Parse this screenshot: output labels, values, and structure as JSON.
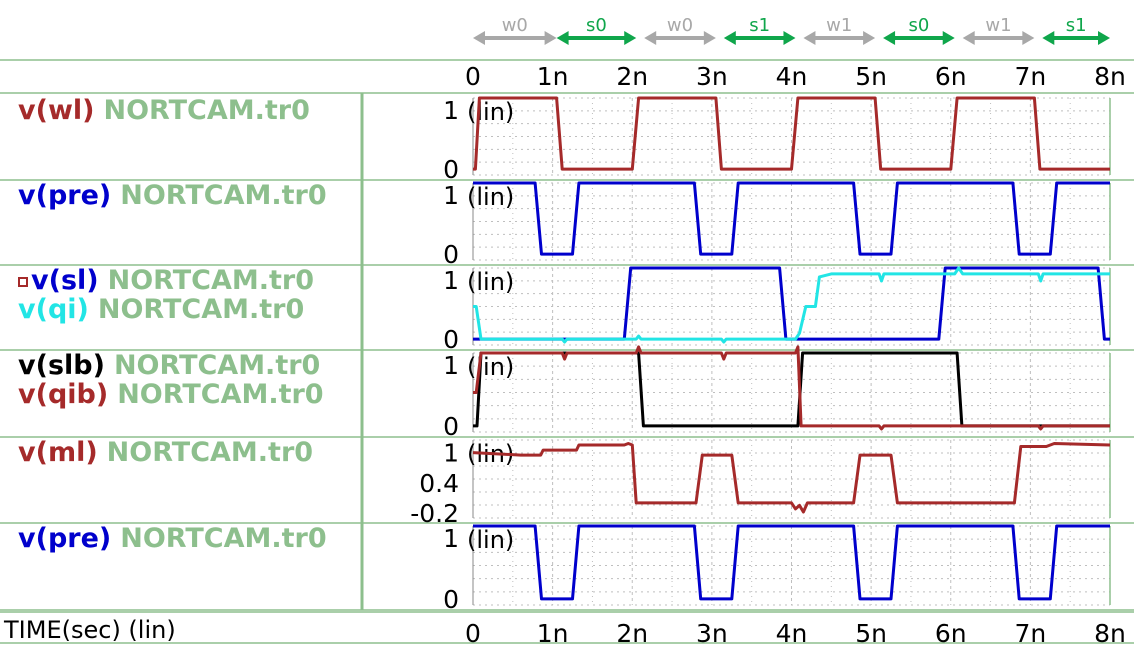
{
  "time_axis": {
    "label": "TIME(sec) (lin)",
    "ticks": [
      "0",
      "1n",
      "2n",
      "3n",
      "4n",
      "5n",
      "6n",
      "7n",
      "8n"
    ],
    "range_ns": [
      0,
      8
    ]
  },
  "ops_row": [
    {
      "label": "w0",
      "t0": 0.0,
      "t1": 1.05,
      "color": "#a8a8a8"
    },
    {
      "label": "s0",
      "t0": 1.05,
      "t1": 2.05,
      "color": "#0fa64b"
    },
    {
      "label": "w0",
      "t0": 2.15,
      "t1": 3.05,
      "color": "#a8a8a8"
    },
    {
      "label": "s1",
      "t0": 3.15,
      "t1": 4.05,
      "color": "#0fa64b"
    },
    {
      "label": "w1",
      "t0": 4.15,
      "t1": 5.05,
      "color": "#a8a8a8"
    },
    {
      "label": "s0",
      "t0": 5.15,
      "t1": 6.05,
      "color": "#0fa64b"
    },
    {
      "label": "w1",
      "t0": 6.15,
      "t1": 7.05,
      "color": "#a8a8a8"
    },
    {
      "label": "s1",
      "t0": 7.15,
      "t1": 8.0,
      "color": "#0fa64b"
    }
  ],
  "chart_data": [
    {
      "type": "line",
      "scale_label": "(lin)",
      "yticks": [
        {
          "v": 1,
          "label": "1"
        },
        {
          "v": 0,
          "label": "0"
        }
      ],
      "ylim": [
        -0.1,
        1.2
      ],
      "series": [
        {
          "name": "v(wl)",
          "source": "NORTCAM.tr0",
          "color": "#a52a2a",
          "x": [
            0,
            0.03,
            0.08,
            1.05,
            1.12,
            2.0,
            2.08,
            3.05,
            3.12,
            4.0,
            4.08,
            5.05,
            5.12,
            6.0,
            6.08,
            7.05,
            7.12,
            8.0
          ],
          "y": [
            0,
            0,
            1.2,
            1.2,
            0,
            0,
            1.2,
            1.2,
            0,
            0,
            1.2,
            1.2,
            0,
            0,
            1.2,
            1.2,
            0,
            0
          ]
        }
      ]
    },
    {
      "type": "line",
      "scale_label": "(lin)",
      "yticks": [
        {
          "v": 1,
          "label": "1"
        },
        {
          "v": 0,
          "label": "0"
        }
      ],
      "ylim": [
        -0.1,
        1.2
      ],
      "series": [
        {
          "name": "v(pre)",
          "source": "NORTCAM.tr0",
          "color": "#0000cc",
          "x": [
            0,
            0.78,
            0.86,
            1.25,
            1.33,
            2.78,
            2.86,
            3.25,
            3.33,
            4.78,
            4.86,
            5.25,
            5.33,
            6.78,
            6.86,
            7.25,
            7.33,
            8.0
          ],
          "y": [
            1.2,
            1.2,
            0,
            0,
            1.2,
            1.2,
            0,
            0,
            1.2,
            1.2,
            0,
            0,
            1.2,
            1.2,
            0,
            0,
            1.2,
            1.2
          ]
        }
      ]
    },
    {
      "type": "line",
      "scale_label": "(lin)",
      "marker_glyph": "▫",
      "yticks": [
        {
          "v": 1,
          "label": "1"
        },
        {
          "v": 0,
          "label": "0"
        }
      ],
      "ylim": [
        -0.1,
        1.2
      ],
      "series": [
        {
          "name": "v(sl)",
          "source": "NORTCAM.tr0",
          "color": "#0000cc",
          "x": [
            0,
            1.9,
            1.98,
            3.85,
            3.93,
            5.85,
            5.93,
            7.85,
            7.93,
            8.0
          ],
          "y": [
            0,
            0,
            1.2,
            1.2,
            0,
            0,
            1.2,
            1.2,
            0,
            0
          ]
        },
        {
          "name": "v(qi)",
          "source": "NORTCAM.tr0",
          "color": "#22e5e5",
          "x": [
            0,
            0.04,
            0.1,
            1.12,
            1.15,
            1.18,
            2.05,
            2.08,
            2.11,
            3.12,
            3.15,
            3.18,
            4.05,
            4.1,
            4.18,
            4.3,
            4.35,
            4.5,
            5.1,
            5.13,
            5.16,
            6.05,
            6.1,
            6.15,
            7.1,
            7.13,
            7.16,
            8.0
          ],
          "y": [
            0.55,
            0.55,
            0,
            0,
            -0.05,
            0,
            0,
            0.05,
            0,
            0,
            -0.05,
            0,
            0,
            0.1,
            0.55,
            0.55,
            1.05,
            1.1,
            1.1,
            0.98,
            1.1,
            1.1,
            1.2,
            1.1,
            1.1,
            0.98,
            1.1,
            1.1
          ]
        }
      ]
    },
    {
      "type": "line",
      "scale_label": "(lin)",
      "yticks": [
        {
          "v": 1,
          "label": "1"
        },
        {
          "v": 0,
          "label": "0"
        }
      ],
      "ylim": [
        -0.1,
        1.2
      ],
      "series": [
        {
          "name": "v(slb)",
          "source": "NORTCAM.tr0",
          "color": "#000000",
          "x": [
            0,
            0.05,
            0.1,
            2.08,
            2.14,
            4.08,
            4.14,
            6.08,
            6.14,
            8.0
          ],
          "y": [
            0,
            0,
            1.2,
            1.2,
            0,
            0,
            1.2,
            1.2,
            0,
            0
          ]
        },
        {
          "name": "v(qib)",
          "source": "NORTCAM.tr0",
          "color": "#a52a2a",
          "x": [
            0,
            0.04,
            0.1,
            1.12,
            1.15,
            1.18,
            2.05,
            2.08,
            2.11,
            3.12,
            3.15,
            3.18,
            4.05,
            4.08,
            4.12,
            5.1,
            5.13,
            5.16,
            7.1,
            7.13,
            7.16,
            8.0
          ],
          "y": [
            0.55,
            0.55,
            1.2,
            1.2,
            1.1,
            1.2,
            1.2,
            1.3,
            1.2,
            1.2,
            1.1,
            1.2,
            1.2,
            1.3,
            0,
            0,
            -0.05,
            0,
            0,
            -0.05,
            0,
            0
          ]
        }
      ]
    },
    {
      "type": "line",
      "scale_label": "(lin)",
      "yticks": [
        {
          "v": 1,
          "label": "1"
        },
        {
          "v": 0.4,
          "label": "0.4"
        },
        {
          "v": -0.2,
          "label": "-0.2"
        }
      ],
      "ylim": [
        -0.3,
        1.25
      ],
      "series": [
        {
          "name": "v(ml)",
          "source": "NORTCAM.tr0",
          "color": "#a52a2a",
          "x": [
            0,
            0.6,
            0.85,
            0.88,
            1.3,
            1.33,
            1.9,
            1.95,
            2.0,
            2.05,
            2.8,
            2.88,
            3.25,
            3.33,
            4.0,
            4.05,
            4.1,
            4.15,
            4.2,
            4.78,
            4.86,
            5.25,
            5.33,
            6.1,
            6.8,
            6.88,
            7.2,
            7.3,
            8.0
          ],
          "y": [
            1.0,
            0.95,
            0.95,
            1.05,
            1.05,
            1.15,
            1.15,
            1.18,
            1.15,
            0,
            0,
            0.95,
            0.95,
            0,
            0,
            -0.12,
            -0.05,
            -0.18,
            0,
            0,
            0.95,
            0.95,
            0,
            0,
            0,
            1.12,
            1.12,
            1.18,
            1.15
          ]
        }
      ]
    },
    {
      "type": "line",
      "scale_label": "(lin)",
      "yticks": [
        {
          "v": 1,
          "label": "1"
        },
        {
          "v": 0,
          "label": "0"
        }
      ],
      "ylim": [
        -0.1,
        1.2
      ],
      "series": [
        {
          "name": "v(pre)",
          "source": "NORTCAM.tr0",
          "color": "#0000cc",
          "x": [
            0,
            0.78,
            0.86,
            1.25,
            1.33,
            2.78,
            2.86,
            3.25,
            3.33,
            4.78,
            4.86,
            5.25,
            5.33,
            6.78,
            6.86,
            7.25,
            7.33,
            8.0
          ],
          "y": [
            1.2,
            1.2,
            0,
            0,
            1.2,
            1.2,
            0,
            0,
            1.2,
            1.2,
            0,
            0,
            1.2,
            1.2,
            0,
            0,
            1.2,
            1.2
          ]
        }
      ]
    }
  ],
  "style": {
    "separator_color": "#8dbf8d",
    "grid_color": "#bfbfbf",
    "source_color": "#8dbf8d",
    "text_color": "#000000"
  }
}
